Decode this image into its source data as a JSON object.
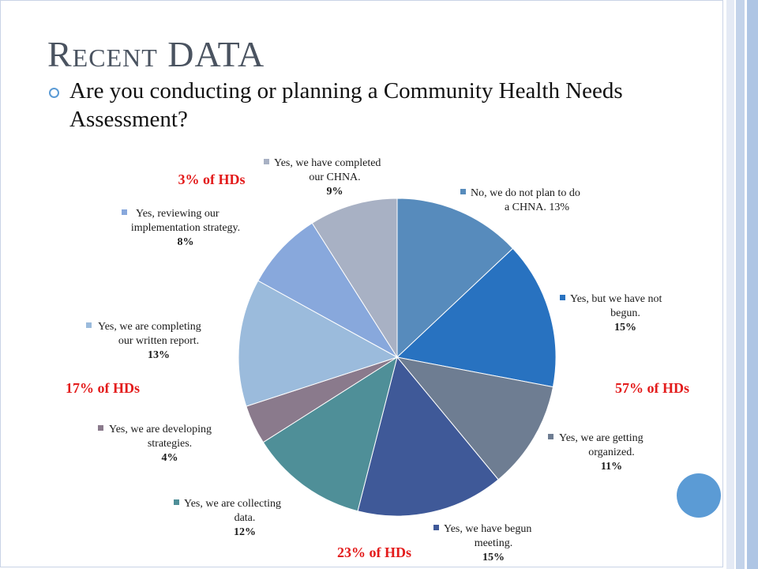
{
  "slide": {
    "title": "Recent DATA",
    "question": "Are you conducting or planning a Community Health Needs Assessment?"
  },
  "colors": {
    "title": "#4a5360",
    "accent": "#5b9bd5",
    "group_label": "#e31b1b",
    "stripes": [
      "#e4eaf5",
      "#c3d3ea",
      "#aec5e4"
    ]
  },
  "chart_data": {
    "type": "pie",
    "start": "top, clockwise",
    "slices": [
      {
        "label": "No, we do not plan to do a CHNA.",
        "value": 13,
        "value_label": "13%",
        "color": "#578bbc",
        "label_lines": [
          "No, we do not plan to do",
          "a CHNA.  13%"
        ]
      },
      {
        "label": "Yes, but we have not begun.",
        "value": 15,
        "value_label": "15%",
        "color": "#2872c0",
        "label_lines": [
          "Yes, but we have not",
          "begun."
        ]
      },
      {
        "label": "Yes, we are getting organized.",
        "value": 11,
        "value_label": "11%",
        "color": "#6e7d92",
        "label_lines": [
          "Yes, we are getting",
          "organized."
        ]
      },
      {
        "label": "Yes, we have begun meeting.",
        "value": 15,
        "value_label": "15%",
        "color": "#3f5998",
        "label_lines": [
          "Yes, we have begun",
          "meeting."
        ]
      },
      {
        "label": "Yes, we are collecting data.",
        "value": 12,
        "value_label": "12%",
        "color": "#4f8f98",
        "label_lines": [
          "Yes, we are collecting",
          "data."
        ]
      },
      {
        "label": "Yes, we are developing strategies.",
        "value": 4,
        "value_label": "4%",
        "color": "#8a7a8c",
        "label_lines": [
          "Yes, we are developing",
          "strategies."
        ]
      },
      {
        "label": "Yes, we are completing our written report.",
        "value": 13,
        "value_label": "13%",
        "color": "#9bbbdc",
        "label_lines": [
          "Yes, we are completing",
          "our written report."
        ]
      },
      {
        "label": "Yes, reviewing our implementation strategy.",
        "value": 8,
        "value_label": "8%",
        "color": "#88a8dc",
        "label_lines": [
          "Yes, reviewing our",
          "implementation strategy."
        ]
      },
      {
        "label": "Yes, we have completed our CHNA.",
        "value": 9,
        "value_label": "9%",
        "color": "#a8b1c4",
        "label_lines": [
          "Yes, we have completed",
          "our CHNA."
        ]
      }
    ],
    "group_annotations": [
      {
        "text": "57%  of HDs"
      },
      {
        "text": "23%  of HDs"
      },
      {
        "text": "17%  of HDs"
      },
      {
        "text": "3%  of HDs"
      }
    ]
  }
}
